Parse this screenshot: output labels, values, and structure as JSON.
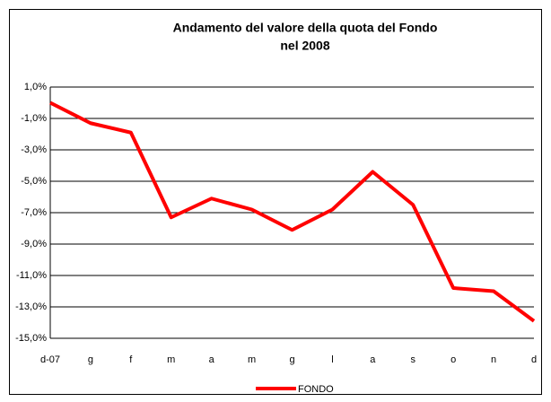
{
  "chart_data": {
    "type": "line",
    "title": "Andamento del valore della quota del Fondo",
    "subtitle": "nel 2008",
    "categories": [
      "d-07",
      "g",
      "f",
      "m",
      "a",
      "m",
      "g",
      "l",
      "a",
      "s",
      "o",
      "n",
      "d"
    ],
    "series": [
      {
        "name": "FONDO",
        "color": "#ff0000",
        "values": [
          0.0,
          -1.3,
          -1.9,
          -7.3,
          -6.1,
          -6.8,
          -8.1,
          -6.8,
          -4.4,
          -6.5,
          -11.8,
          -12.0,
          -13.9
        ]
      }
    ],
    "ylim": [
      -15,
      1
    ],
    "yticks": [
      {
        "value": 1,
        "label": "1,0%"
      },
      {
        "value": -1,
        "label": "-1,0%"
      },
      {
        "value": -3,
        "label": "-3,0%"
      },
      {
        "value": -5,
        "label": "-5,0%"
      },
      {
        "value": -7,
        "label": "-7,0%"
      },
      {
        "value": -9,
        "label": "-9,0%"
      },
      {
        "value": -11,
        "label": "-11,0%"
      },
      {
        "value": -13,
        "label": "-13,0%"
      },
      {
        "value": -15,
        "label": "-15,0%"
      }
    ],
    "grid": true
  }
}
